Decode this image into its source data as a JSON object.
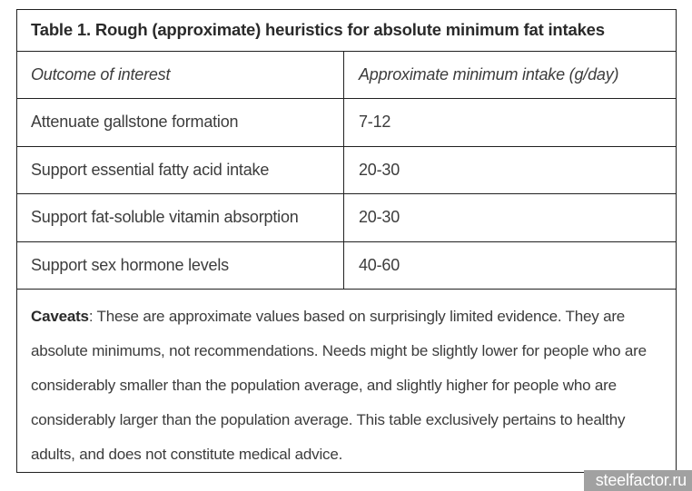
{
  "table": {
    "title": "Table 1. Rough (approximate) heuristics for absolute minimum fat intakes",
    "columns": [
      "Outcome of interest",
      "Approximate minimum intake (g/day)"
    ],
    "rows": [
      {
        "outcome": "Attenuate gallstone formation",
        "intake": "7-12"
      },
      {
        "outcome": "Support essential fatty acid intake",
        "intake": "20-30"
      },
      {
        "outcome": "Support fat-soluble vitamin absorption",
        "intake": "20-30"
      },
      {
        "outcome": "Support sex hormone levels",
        "intake": "40-60"
      }
    ],
    "caveats_label": "Caveats",
    "caveats_text": ": These are approximate values based on surprisingly limited evidence. They are absolute minimums, not recommendations. Needs might be slightly lower for people who are considerably smaller than the population average, and slightly higher for people who are considerably larger than the population average. This table exclusively pertains to healthy adults, and does not constitute medical advice."
  },
  "watermark": {
    "label": "steelfactor.ru"
  },
  "colors": {
    "border": "#212121",
    "text": "#3c3c3c",
    "title_text": "#2a2a2a",
    "watermark_bg": "#a1a1a1",
    "watermark_text": "#ffffff",
    "page_bg": "#ffffff"
  }
}
